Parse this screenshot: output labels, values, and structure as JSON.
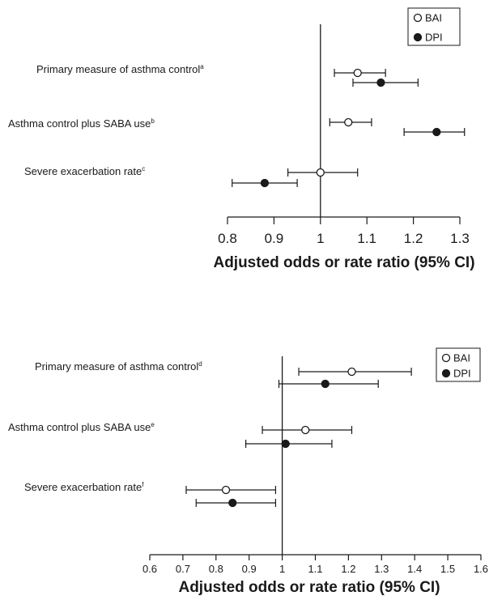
{
  "chart_data": [
    {
      "type": "forest",
      "xlabel": "Adjusted odds or rate ratio (95% CI)",
      "xlim": [
        0.8,
        1.3
      ],
      "xticks": [
        "0.8",
        "0.9",
        "1",
        "1.1",
        "1.2",
        "1.3"
      ],
      "reference_line": 1,
      "legend": [
        {
          "name": "BAI",
          "marker": "open-circle"
        },
        {
          "name": "DPI",
          "marker": "filled-circle"
        }
      ],
      "categories": [
        {
          "label": "Primary measure of asthma control",
          "sup": "a"
        },
        {
          "label": "Asthma control plus SABA use",
          "sup": "b"
        },
        {
          "label": "Severe exacerbation rate",
          "sup": "c"
        }
      ],
      "series": [
        {
          "name": "BAI",
          "values": [
            {
              "est": 1.08,
              "lo": 1.03,
              "hi": 1.14
            },
            {
              "est": 1.06,
              "lo": 1.02,
              "hi": 1.11
            },
            {
              "est": 1.0,
              "lo": 0.93,
              "hi": 1.08
            }
          ]
        },
        {
          "name": "DPI",
          "values": [
            {
              "est": 1.13,
              "lo": 1.07,
              "hi": 1.21
            },
            {
              "est": 1.25,
              "lo": 1.18,
              "hi": 1.31
            },
            {
              "est": 0.88,
              "lo": 0.81,
              "hi": 0.95
            }
          ]
        }
      ]
    },
    {
      "type": "forest",
      "xlabel": "Adjusted odds or rate ratio (95% CI)",
      "xlim": [
        0.6,
        1.6
      ],
      "xticks": [
        "0.6",
        "0.7",
        "0.8",
        "0.9",
        "1",
        "1.1",
        "1.2",
        "1.3",
        "1.4",
        "1.5",
        "1.6"
      ],
      "reference_line": 1,
      "legend": [
        {
          "name": "BAI",
          "marker": "open-circle"
        },
        {
          "name": "DPI",
          "marker": "filled-circle"
        }
      ],
      "categories": [
        {
          "label": "Primary measure of asthma control",
          "sup": "d"
        },
        {
          "label": "Asthma control plus SABA use",
          "sup": "e"
        },
        {
          "label": "Severe exacerbation rate",
          "sup": "f"
        }
      ],
      "series": [
        {
          "name": "BAI",
          "values": [
            {
              "est": 1.21,
              "lo": 1.05,
              "hi": 1.39
            },
            {
              "est": 1.07,
              "lo": 0.94,
              "hi": 1.21
            },
            {
              "est": 0.83,
              "lo": 0.71,
              "hi": 0.98
            }
          ]
        },
        {
          "name": "DPI",
          "values": [
            {
              "est": 1.13,
              "lo": 0.99,
              "hi": 1.29
            },
            {
              "est": 1.01,
              "lo": 0.89,
              "hi": 1.15
            },
            {
              "est": 0.85,
              "lo": 0.74,
              "hi": 0.98
            }
          ]
        }
      ]
    }
  ]
}
